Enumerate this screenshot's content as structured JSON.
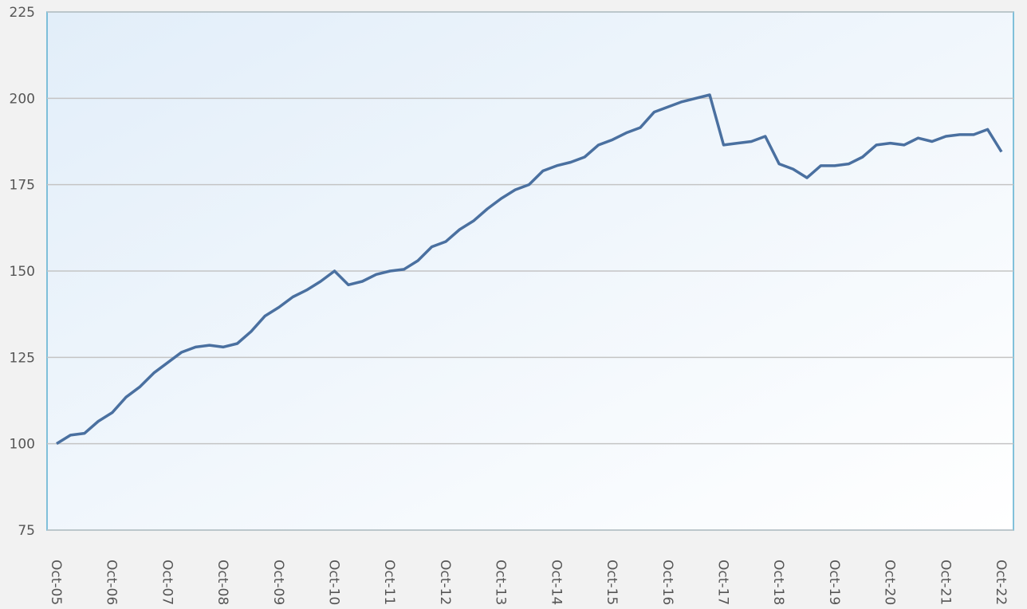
{
  "chart_data": {
    "type": "line",
    "categories": [
      "Oct-05",
      null,
      null,
      null,
      "Oct-06",
      null,
      null,
      null,
      "Oct-07",
      null,
      null,
      null,
      "Oct-08",
      null,
      null,
      null,
      "Oct-09",
      null,
      null,
      null,
      "Oct-10",
      null,
      null,
      null,
      "Oct-11",
      null,
      null,
      null,
      "Oct-12",
      null,
      null,
      null,
      "Oct-13",
      null,
      null,
      null,
      "Oct-14",
      null,
      null,
      null,
      "Oct-15",
      null,
      null,
      null,
      "Oct-16",
      null,
      null,
      null,
      "Oct-17",
      null,
      null,
      null,
      "Oct-18",
      null,
      null,
      null,
      "Oct-19",
      null,
      null,
      null,
      "Oct-20",
      null,
      null,
      null,
      "Oct-21",
      null,
      null,
      null,
      "Oct-22"
    ],
    "series": [
      {
        "color": "#4a70a0",
        "values": [
          100,
          102.5,
          103,
          106.5,
          109,
          113.5,
          116.5,
          120.5,
          123.5,
          126.5,
          128,
          128.5,
          128,
          129,
          132.5,
          137,
          139.5,
          142.5,
          144.5,
          147,
          150,
          146,
          147,
          149,
          150,
          150.5,
          153,
          157,
          158.5,
          162,
          164.5,
          168,
          171,
          173.5,
          175,
          179,
          180.5,
          181.5,
          183,
          186.5,
          188,
          190,
          191.5,
          196,
          197.5,
          199,
          200,
          201,
          186.5,
          187,
          187.5,
          189,
          181,
          179.5,
          177,
          180.5,
          180.5,
          181,
          183,
          186.5,
          187,
          186.5,
          188.5,
          187.5,
          189,
          189.5,
          189.5,
          191,
          184.5
        ]
      }
    ],
    "ylim": [
      75,
      225
    ],
    "yticks": [
      75,
      100,
      125,
      150,
      175,
      200,
      225
    ],
    "grid": true
  }
}
